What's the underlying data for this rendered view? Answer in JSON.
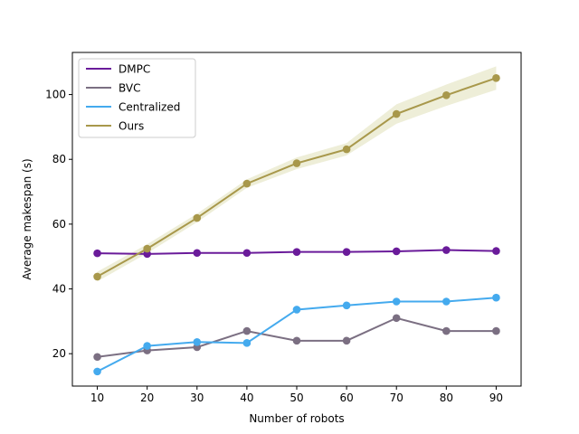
{
  "chart_data": {
    "type": "line",
    "title": "",
    "xlabel": "Number of robots",
    "ylabel": "Average makespan (s)",
    "x": [
      10,
      20,
      30,
      40,
      50,
      60,
      70,
      80,
      90
    ],
    "xlim": [
      5,
      95
    ],
    "ylim": [
      10,
      113
    ],
    "xticks": [
      10,
      20,
      30,
      40,
      50,
      60,
      70,
      80,
      90
    ],
    "yticks": [
      20,
      40,
      60,
      80,
      100
    ],
    "grid": false,
    "legend_position": "upper-left",
    "series": [
      {
        "name": "DMPC",
        "color": "#6a1b9a",
        "values": [
          51.0,
          50.8,
          51.1,
          51.1,
          51.4,
          51.4,
          51.6,
          52.0,
          51.7
        ]
      },
      {
        "name": "BVC",
        "color": "#7b6f82",
        "values": [
          19.0,
          21.0,
          22.0,
          27.0,
          24.0,
          24.0,
          31.0,
          27.0,
          27.0
        ]
      },
      {
        "name": "Centralized",
        "color": "#44aaee",
        "values": [
          14.5,
          22.4,
          23.6,
          23.3,
          33.6,
          34.9,
          36.1,
          36.1,
          37.3
        ]
      },
      {
        "name": "Ours",
        "color": "#a8984b",
        "band_color": "#eeeed8",
        "values": [
          43.8,
          52.4,
          61.9,
          72.5,
          78.8,
          83.1,
          94.0,
          99.8,
          105.1
        ],
        "band_lower": [
          42.3,
          51.0,
          60.6,
          71.2,
          77.0,
          81.2,
          91.0,
          96.5,
          101.5
        ],
        "band_upper": [
          45.3,
          53.8,
          63.2,
          73.8,
          80.6,
          85.0,
          97.0,
          103.1,
          108.7
        ]
      }
    ]
  }
}
